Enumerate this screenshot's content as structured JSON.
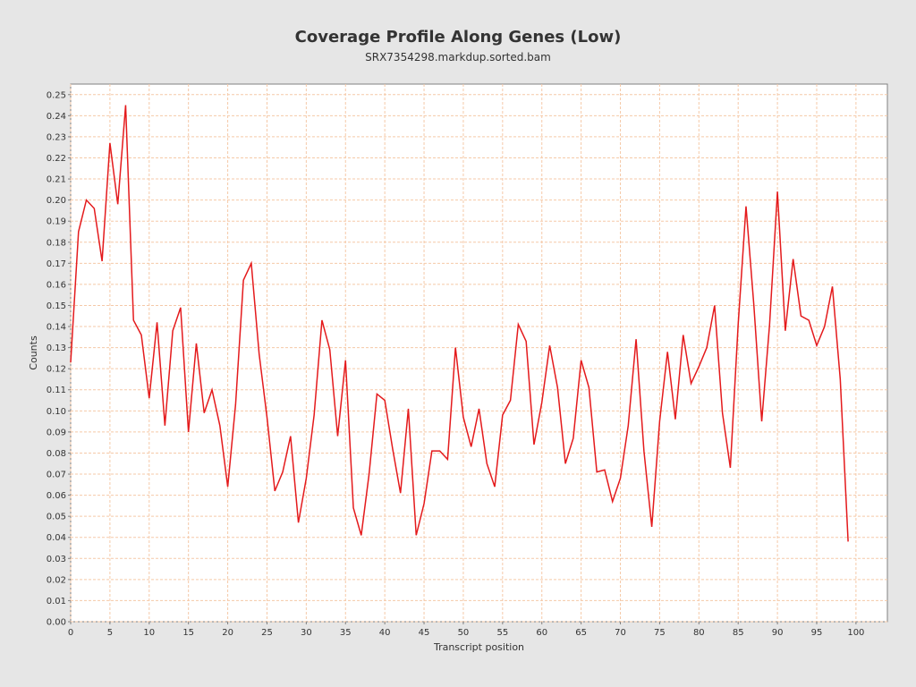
{
  "chart_data": {
    "type": "line",
    "title": "Coverage Profile Along Genes (Low)",
    "subtitle": "SRX7354298.markdup.sorted.bam",
    "xlabel": "Transcript position",
    "ylabel": "Counts",
    "xlim": [
      0,
      104
    ],
    "ylim": [
      0,
      0.255
    ],
    "xticks": [
      0,
      5,
      10,
      15,
      20,
      25,
      30,
      35,
      40,
      45,
      50,
      55,
      60,
      65,
      70,
      75,
      80,
      85,
      90,
      95,
      100
    ],
    "yticks": [
      0.0,
      0.01,
      0.02,
      0.03,
      0.04,
      0.05,
      0.06,
      0.07,
      0.08,
      0.09,
      0.1,
      0.11,
      0.12,
      0.13,
      0.14,
      0.15,
      0.16,
      0.17,
      0.18,
      0.19,
      0.2,
      0.21,
      0.22,
      0.23,
      0.24,
      0.25
    ],
    "grid": true,
    "colors": {
      "line": "#e41a1c",
      "grid": "#f5c9a8",
      "plot_bg": "#ffffff",
      "page_bg": "#e6e6e6"
    },
    "series": [
      {
        "x": [
          0,
          1,
          2,
          3,
          4,
          5,
          6,
          7,
          8,
          9,
          10,
          11,
          12,
          13,
          14,
          15,
          16,
          17,
          18,
          19,
          20,
          21,
          22,
          23,
          24,
          25,
          26,
          27,
          28,
          29,
          30,
          31,
          32,
          33,
          34,
          35,
          36,
          37,
          38,
          39,
          40,
          41,
          42,
          43,
          44,
          45,
          46,
          47,
          48,
          49,
          50,
          51,
          52,
          53,
          54,
          55,
          56,
          57,
          58,
          59,
          60,
          61,
          62,
          63,
          64,
          65,
          66,
          67,
          68,
          69,
          70,
          71,
          72,
          73,
          74,
          75,
          76,
          77,
          78,
          79,
          80,
          81,
          82,
          83,
          84,
          85,
          86,
          87,
          88,
          89,
          90,
          91,
          92,
          93,
          94,
          95,
          96,
          97,
          98,
          99
        ],
        "values": [
          0.123,
          0.185,
          0.2,
          0.196,
          0.171,
          0.227,
          0.198,
          0.245,
          0.143,
          0.136,
          0.106,
          0.142,
          0.093,
          0.138,
          0.149,
          0.09,
          0.132,
          0.099,
          0.11,
          0.093,
          0.064,
          0.103,
          0.162,
          0.17,
          0.127,
          0.097,
          0.062,
          0.071,
          0.088,
          0.047,
          0.068,
          0.098,
          0.143,
          0.129,
          0.088,
          0.124,
          0.054,
          0.041,
          0.07,
          0.108,
          0.105,
          0.082,
          0.061,
          0.101,
          0.041,
          0.056,
          0.081,
          0.081,
          0.077,
          0.13,
          0.097,
          0.083,
          0.101,
          0.075,
          0.064,
          0.098,
          0.105,
          0.141,
          0.133,
          0.084,
          0.104,
          0.131,
          0.111,
          0.075,
          0.087,
          0.124,
          0.111,
          0.071,
          0.072,
          0.057,
          0.068,
          0.093,
          0.134,
          0.081,
          0.045,
          0.095,
          0.128,
          0.096,
          0.136,
          0.113,
          0.121,
          0.13,
          0.15,
          0.099,
          0.073,
          0.141,
          0.197,
          0.15,
          0.095,
          0.141,
          0.204,
          0.138,
          0.172,
          0.145,
          0.143,
          0.131,
          0.14,
          0.159,
          0.115,
          0.038
        ]
      }
    ]
  }
}
